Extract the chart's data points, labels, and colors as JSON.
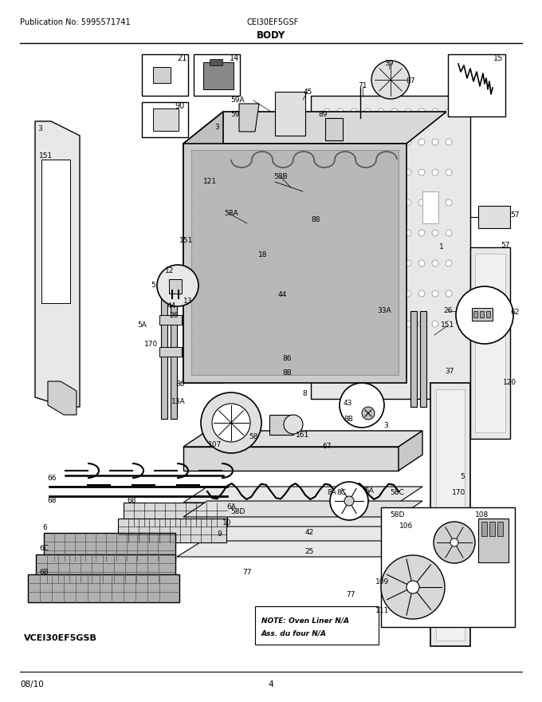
{
  "publication": "Publication No: 5995571741",
  "model": "CEI30EF5GSF",
  "section": "BODY",
  "date": "08/10",
  "page": "4",
  "variant": "VCEI30EF5GSB",
  "note_line1": "NOTE: Oven Liner N/A",
  "note_line2": "Ass. du four N/A",
  "bg_color": "#ffffff",
  "fig_w": 6.8,
  "fig_h": 8.8,
  "dpi": 100
}
